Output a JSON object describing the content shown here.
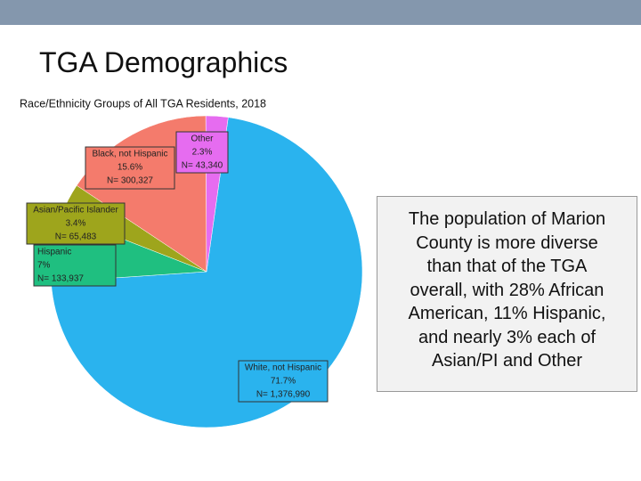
{
  "header": {
    "title": "TGA Demographics"
  },
  "chart_data": {
    "type": "pie",
    "title": "Race/Ethnicity Groups of All TGA Residents, 2018",
    "categories": [
      "White, not Hispanic",
      "Hispanic",
      "Asian/Pacific Islander",
      "Black, not Hispanic",
      "Other"
    ],
    "values": [
      71.7,
      7,
      3.4,
      15.6,
      2.3
    ],
    "value_labels": [
      "71.7%",
      "7%",
      "3.4%",
      "15.6%",
      "2.3%"
    ],
    "count_labels": [
      "N= 1,376,990",
      "N= 133,937",
      "N= 65,483",
      "N= 300,327",
      "N= 43,340"
    ],
    "colors": [
      "#2ab3ee",
      "#1fbf80",
      "#9ea51c",
      "#f47b6c",
      "#e66cf0"
    ]
  },
  "text_box": {
    "lines": [
      "The population of Marion",
      "County is more diverse",
      "than that of the TGA",
      "overall, with 28% African",
      "American, 11% Hispanic,",
      "and nearly 3% each of",
      "Asian/PI and Other"
    ]
  }
}
